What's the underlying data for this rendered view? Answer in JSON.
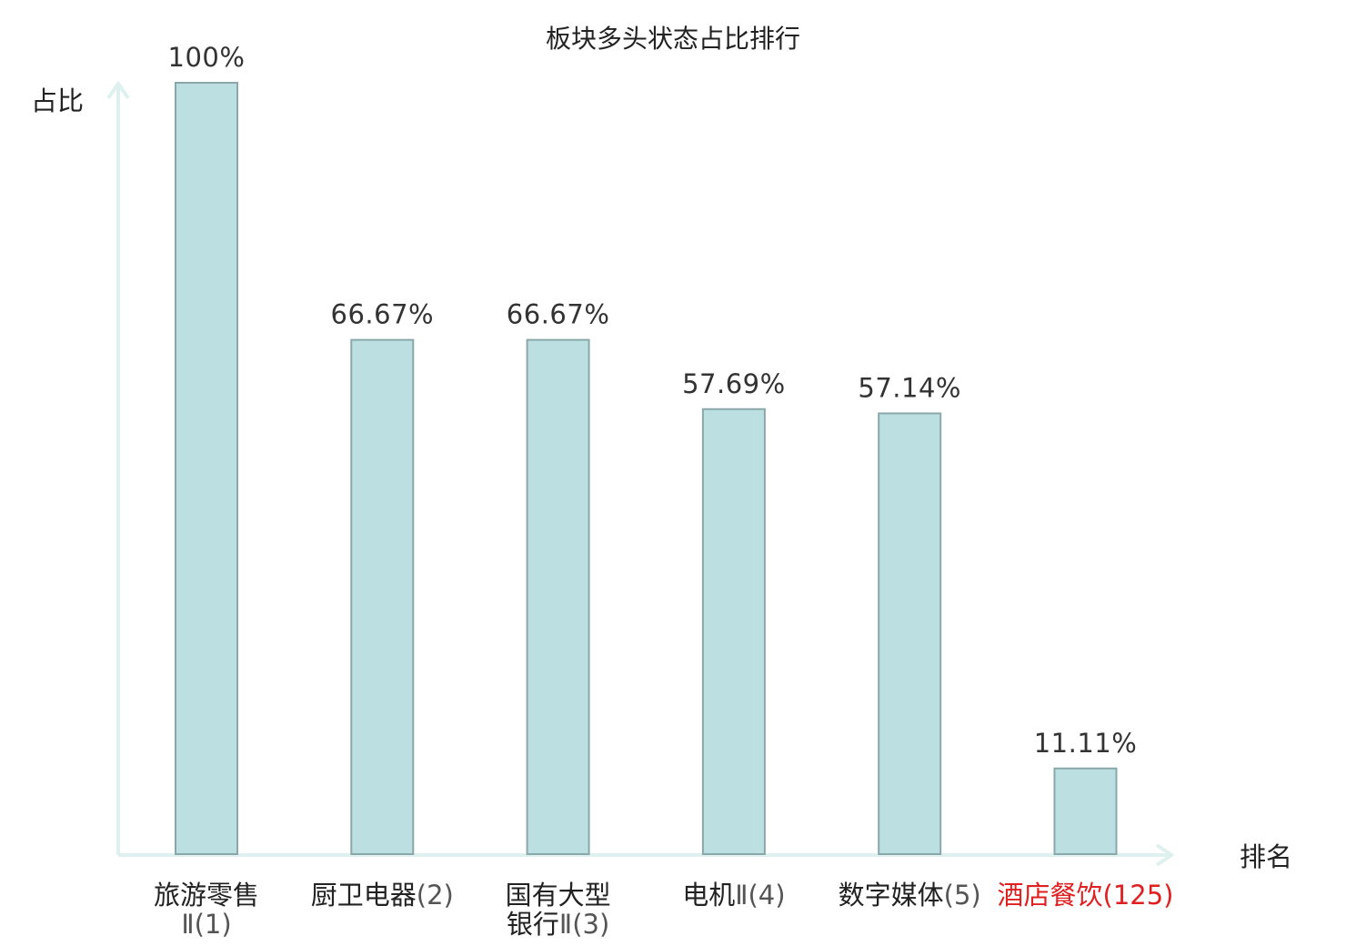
{
  "chart_data": {
    "type": "bar",
    "title": "板块多头状态占比排行",
    "ylabel": "占比",
    "xlabel": "排名",
    "ylim": [
      0,
      100
    ],
    "grid": false,
    "legend": "none",
    "categories": [
      {
        "name_lines": [
          "旅游零售",
          "Ⅱ(1)"
        ],
        "value": 100,
        "value_label": "100%",
        "highlight": false
      },
      {
        "name_lines": [
          "厨卫电器(2)"
        ],
        "value": 66.67,
        "value_label": "66.67%",
        "highlight": false
      },
      {
        "name_lines": [
          "国有大型",
          "银行Ⅱ(3)"
        ],
        "value": 66.67,
        "value_label": "66.67%",
        "highlight": false
      },
      {
        "name_lines": [
          "电机Ⅱ(4)"
        ],
        "value": 57.69,
        "value_label": "57.69%",
        "highlight": false
      },
      {
        "name_lines": [
          "数字媒体(5)"
        ],
        "value": 57.14,
        "value_label": "57.14%",
        "highlight": false
      },
      {
        "name_lines": [
          "酒店餐饮(125)"
        ],
        "value": 11.11,
        "value_label": "11.11%",
        "highlight": true
      }
    ],
    "colors": {
      "bar_fill": "#bce0e2",
      "bar_stroke": "#8aa8aa",
      "axis": "#dff1ee",
      "highlight_text": "#e02020",
      "text": "#222222"
    }
  }
}
